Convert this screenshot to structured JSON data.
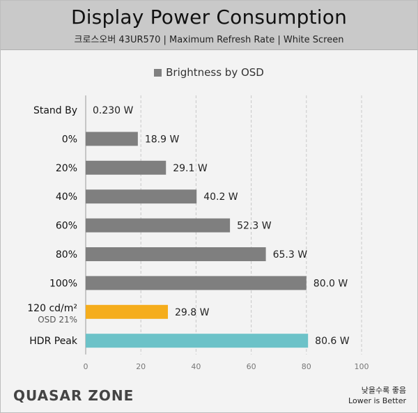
{
  "header": {
    "title": "Display Power Consumption",
    "subtitle": "크로스오버 43UR570  |  Maximum Refresh Rate  |  White Screen"
  },
  "legend": {
    "label": "Brightness by OSD"
  },
  "chart_data": {
    "type": "bar",
    "orientation": "horizontal",
    "title": "Display Power Consumption",
    "xlim": [
      0,
      100
    ],
    "xticks": [
      0,
      20,
      40,
      60,
      80,
      100
    ],
    "grid": true,
    "legend_position": "top-center",
    "series": [
      {
        "name": "Brightness by OSD",
        "color": "#7f7f7f",
        "bars": [
          {
            "category": "Stand By",
            "value": 0.23,
            "label": "0.230 W",
            "color": "#7f7f7f"
          },
          {
            "category": "0%",
            "value": 18.9,
            "label": "18.9 W",
            "color": "#7f7f7f"
          },
          {
            "category": "20%",
            "value": 29.1,
            "label": "29.1 W",
            "color": "#7f7f7f"
          },
          {
            "category": "40%",
            "value": 40.2,
            "label": "40.2 W",
            "color": "#7f7f7f"
          },
          {
            "category": "60%",
            "value": 52.3,
            "label": "52.3 W",
            "color": "#7f7f7f"
          },
          {
            "category": "80%",
            "value": 65.3,
            "label": "65.3 W",
            "color": "#7f7f7f"
          },
          {
            "category": "100%",
            "value": 80.0,
            "label": "80.0 W",
            "color": "#7f7f7f"
          },
          {
            "category": "120 cd/m²",
            "sublabel": "OSD 21%",
            "value": 29.8,
            "label": "29.8 W",
            "color": "#f5ad1c"
          },
          {
            "category": "HDR Peak",
            "value": 80.6,
            "label": "80.6 W",
            "color": "#6cc2c8"
          }
        ]
      }
    ]
  },
  "footer": {
    "logo": "QUASAR ZONE",
    "note_ko": "낮을수록 좋음",
    "note_en": "Lower is Better"
  }
}
